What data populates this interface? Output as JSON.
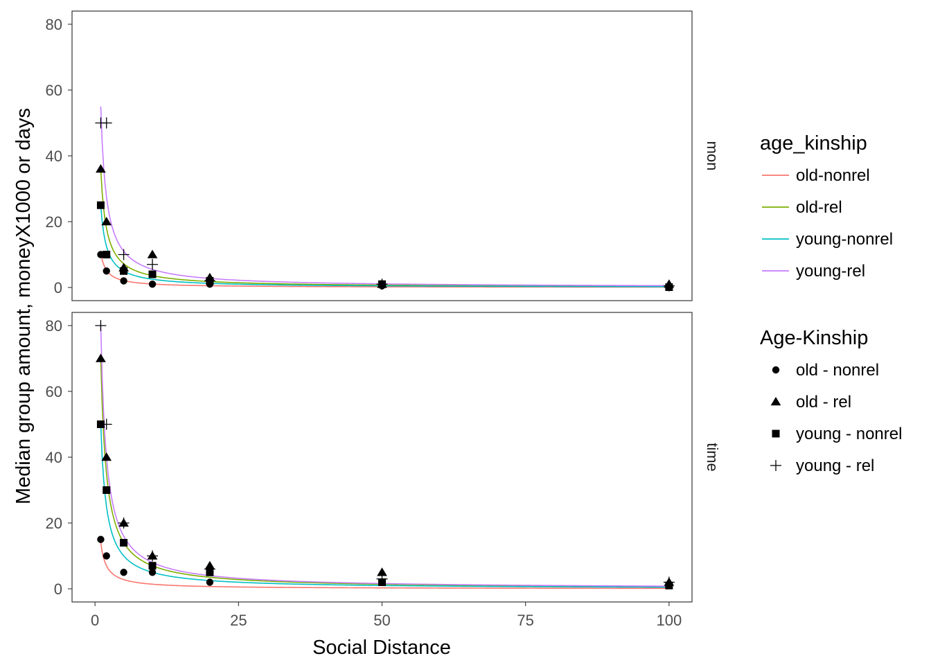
{
  "chart_data": {
    "type": "scatter",
    "xlabel": "Social Distance",
    "ylabel": "Median group amount, moneyX1000 or days",
    "xlim": [
      -4,
      104
    ],
    "ylim": [
      -4,
      84
    ],
    "xticks": [
      0,
      25,
      50,
      75,
      100
    ],
    "yticks": [
      0,
      20,
      40,
      60,
      80
    ],
    "grid": false,
    "legend_position": "right",
    "colors": {
      "old-nonrel": "#F8766D",
      "old-rel": "#7CAE00",
      "young-nonrel": "#00BFC4",
      "young-rel": "#C77CFF"
    },
    "panels": [
      {
        "strip": "mon",
        "points": [
          {
            "group": "old - nonrel",
            "x": [
              1,
              2,
              5,
              10,
              20,
              50,
              100
            ],
            "y": [
              10,
              5,
              2,
              1,
              1,
              0.5,
              0.2
            ]
          },
          {
            "group": "old - rel",
            "x": [
              1,
              2,
              5,
              10,
              20,
              50,
              100
            ],
            "y": [
              36,
              20,
              6,
              10,
              3,
              1,
              1
            ]
          },
          {
            "group": "young - nonrel",
            "x": [
              1,
              2,
              5,
              10,
              20,
              50,
              100
            ],
            "y": [
              25,
              10,
              5,
              4,
              2,
              1,
              0.1
            ]
          },
          {
            "group": "young - rel",
            "x": [
              1,
              2,
              5,
              10,
              20,
              50,
              100
            ],
            "y": [
              50,
              50,
              10,
              7,
              2,
              1,
              0.5
            ]
          }
        ],
        "curves": [
          {
            "group": "old-nonrel",
            "a": 10.5
          },
          {
            "group": "old-rel",
            "a": 36
          },
          {
            "group": "young-nonrel",
            "a": 25
          },
          {
            "group": "young-rel",
            "a": 55
          }
        ]
      },
      {
        "strip": "time",
        "points": [
          {
            "group": "old - nonrel",
            "x": [
              1,
              2,
              5,
              10,
              20,
              50,
              100
            ],
            "y": [
              15,
              10,
              5,
              5,
              2,
              2,
              1
            ]
          },
          {
            "group": "old - rel",
            "x": [
              1,
              2,
              5,
              10,
              20,
              50,
              100
            ],
            "y": [
              70,
              40,
              20,
              10,
              7,
              5,
              2
            ]
          },
          {
            "group": "young - nonrel",
            "x": [
              1,
              2,
              5,
              10,
              20,
              50,
              100
            ],
            "y": [
              50,
              30,
              14,
              7,
              5,
              2,
              1
            ]
          },
          {
            "group": "young - rel",
            "x": [
              1,
              2,
              5,
              10,
              20,
              50,
              100
            ],
            "y": [
              80,
              50,
              20,
              10,
              6,
              3,
              2
            ]
          }
        ],
        "curves": [
          {
            "group": "old-nonrel",
            "a": 14
          },
          {
            "group": "old-rel",
            "a": 70
          },
          {
            "group": "young-nonrel",
            "a": 50
          },
          {
            "group": "young-rel",
            "a": 80
          }
        ]
      }
    ],
    "curve_model": "y = a / x",
    "legends": [
      {
        "title": "age_kinship",
        "kind": "line",
        "entries": [
          "old-nonrel",
          "old-rel",
          "young-nonrel",
          "young-rel"
        ]
      },
      {
        "title": "Age-Kinship",
        "kind": "shape",
        "entries": [
          "old - nonrel",
          "old - rel",
          "young - nonrel",
          "young - rel"
        ],
        "shapes": [
          "circle",
          "triangle",
          "square",
          "plus"
        ]
      }
    ]
  }
}
